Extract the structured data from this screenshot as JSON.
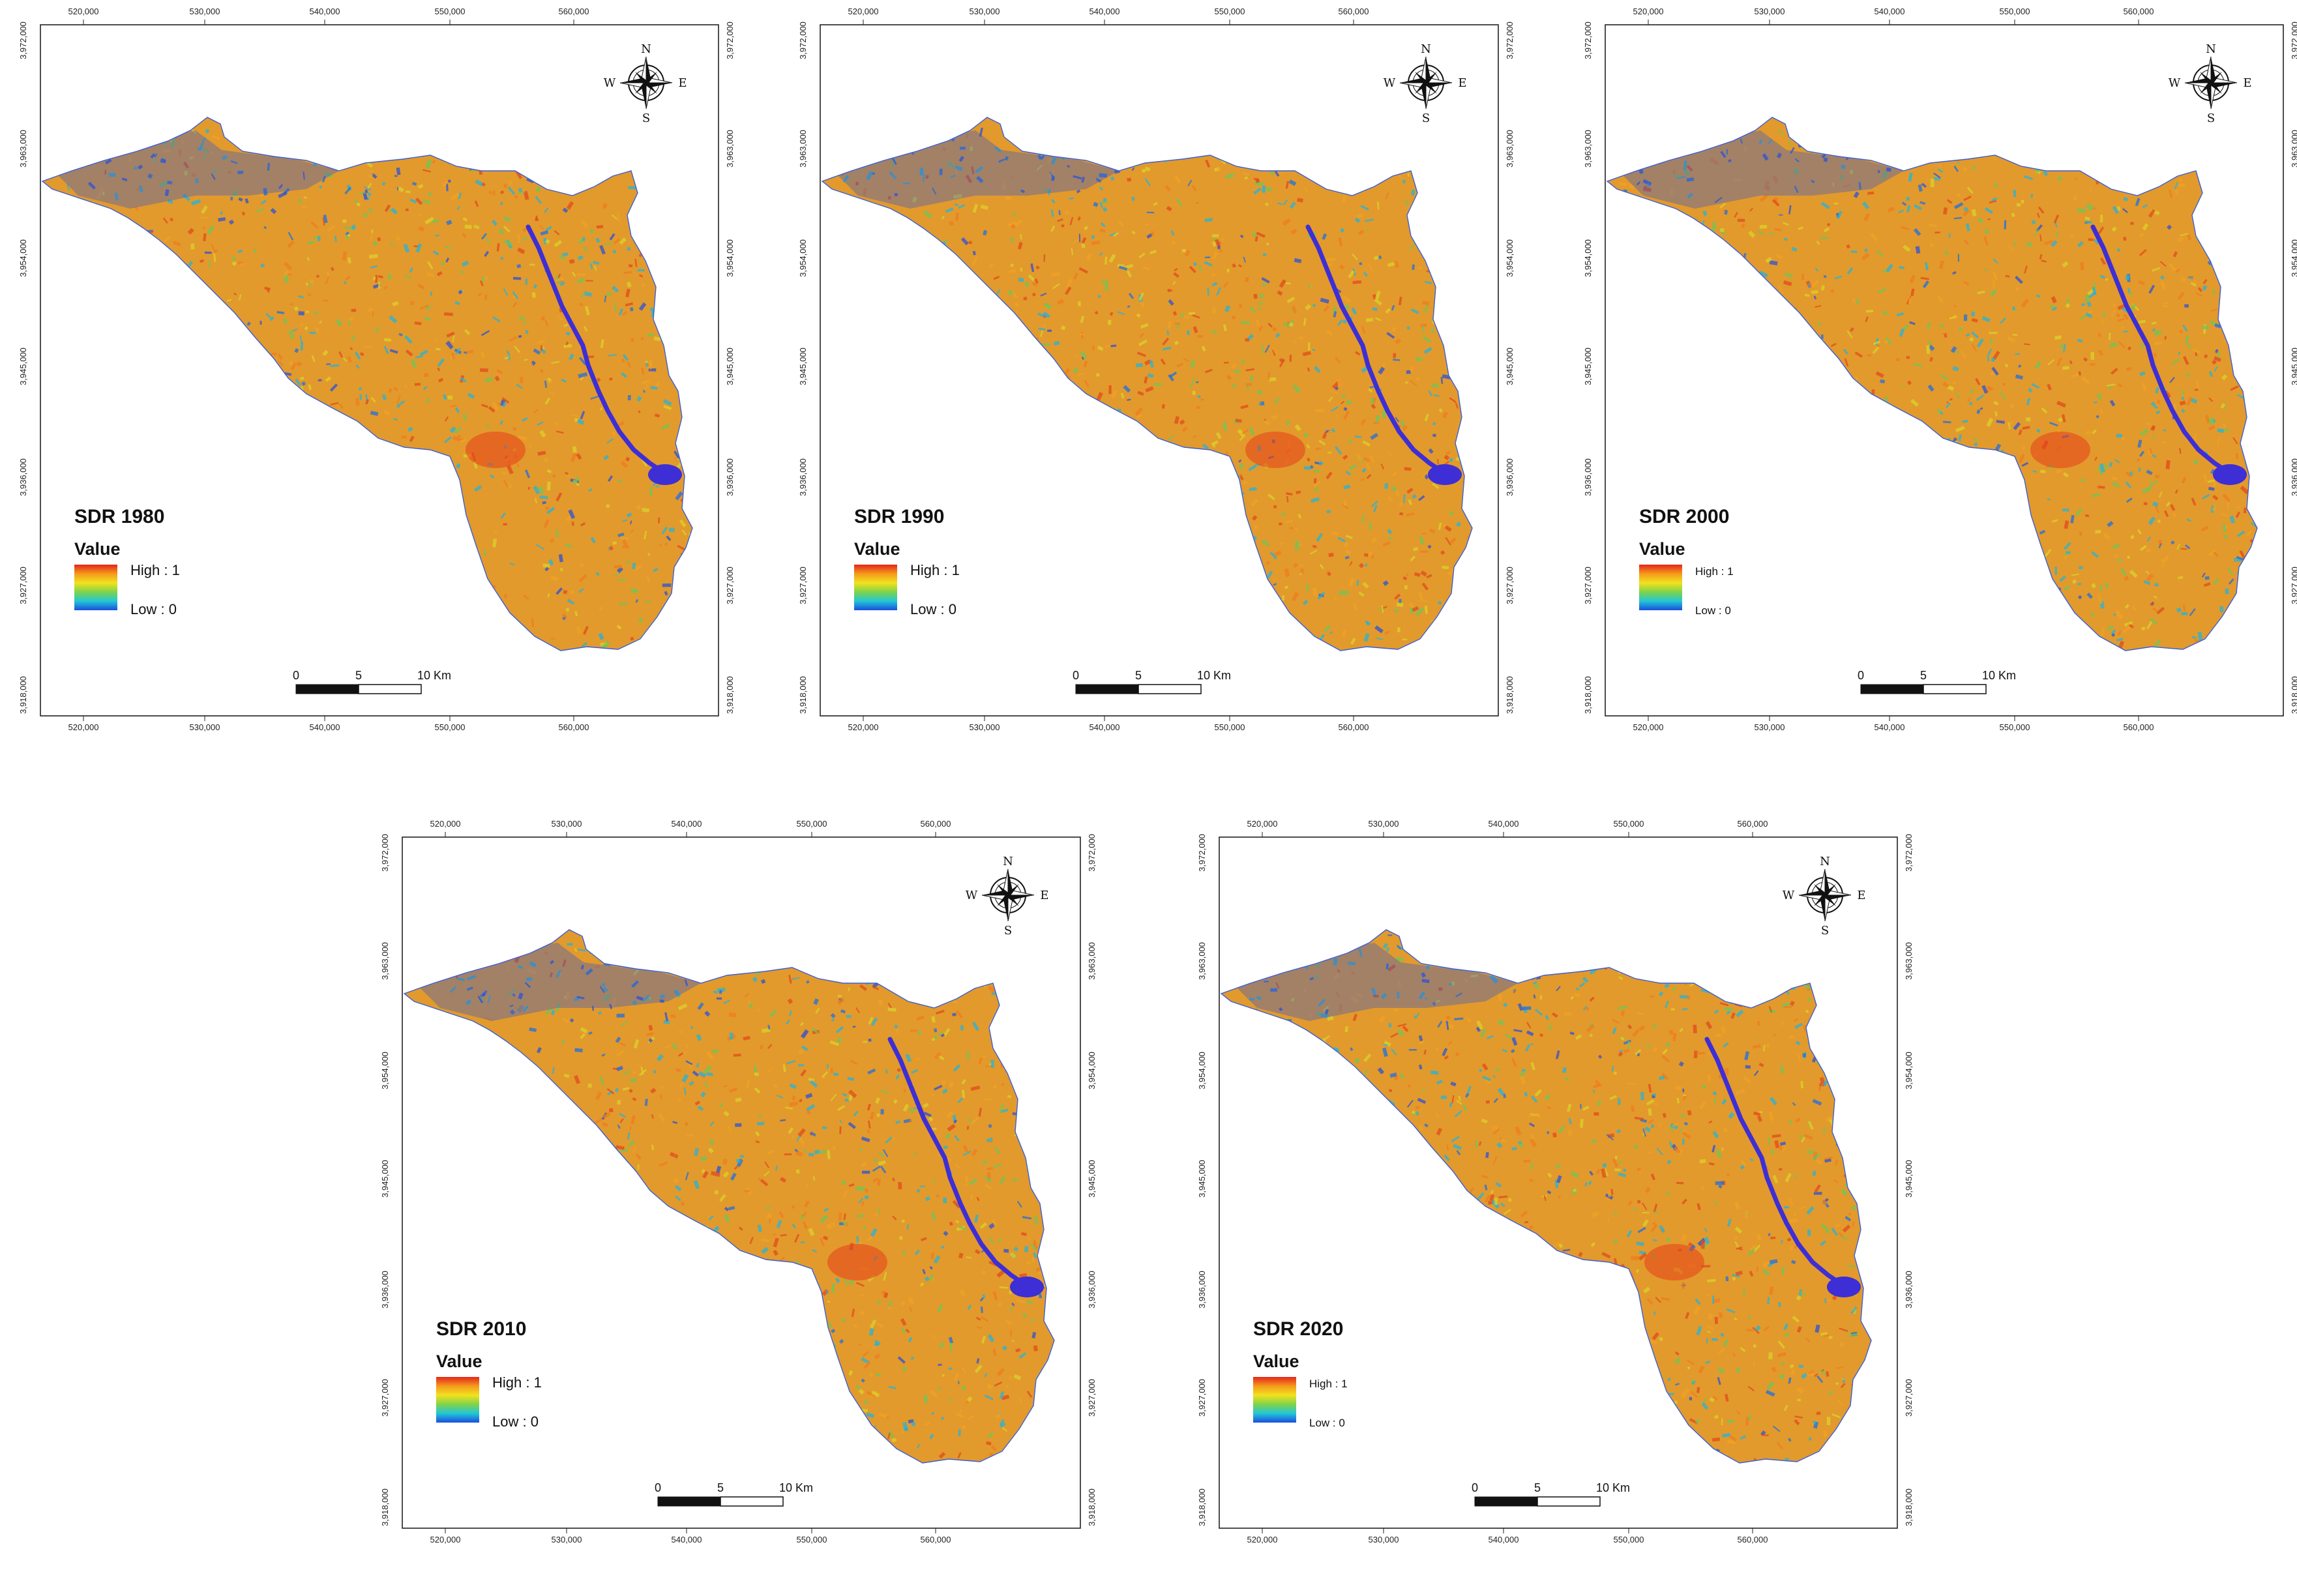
{
  "axes": {
    "x_ticks": [
      "520,000",
      "530,000",
      "540,000",
      "550,000",
      "560,000"
    ],
    "y_ticks": [
      "3,972,000",
      "3,963,000",
      "3,954,000",
      "3,945,000",
      "3,936,000",
      "3,927,000",
      "3,918,000"
    ]
  },
  "compass": {
    "n": "N",
    "s": "S",
    "e": "E",
    "w": "W"
  },
  "scale_bar": {
    "labels": [
      "0",
      "5",
      "10 Km"
    ]
  },
  "legend": {
    "heading": "Value",
    "high": "High : 1",
    "low": "Low : 0"
  },
  "colors": {
    "ramp": [
      "#e4261c",
      "#f49a1c",
      "#f2e21e",
      "#7fd34a",
      "#22c7d6",
      "#1a4ee0"
    ],
    "base": "#e29a2c",
    "low_value": "#2a52d8",
    "river": "#3d2ed6"
  },
  "panels": [
    {
      "title": "SDR 1980",
      "year": 1980
    },
    {
      "title": "SDR 1990",
      "year": 1990
    },
    {
      "title": "SDR 2000",
      "year": 2000
    },
    {
      "title": "SDR 2010",
      "year": 2010
    },
    {
      "title": "SDR 2020",
      "year": 2020
    }
  ]
}
